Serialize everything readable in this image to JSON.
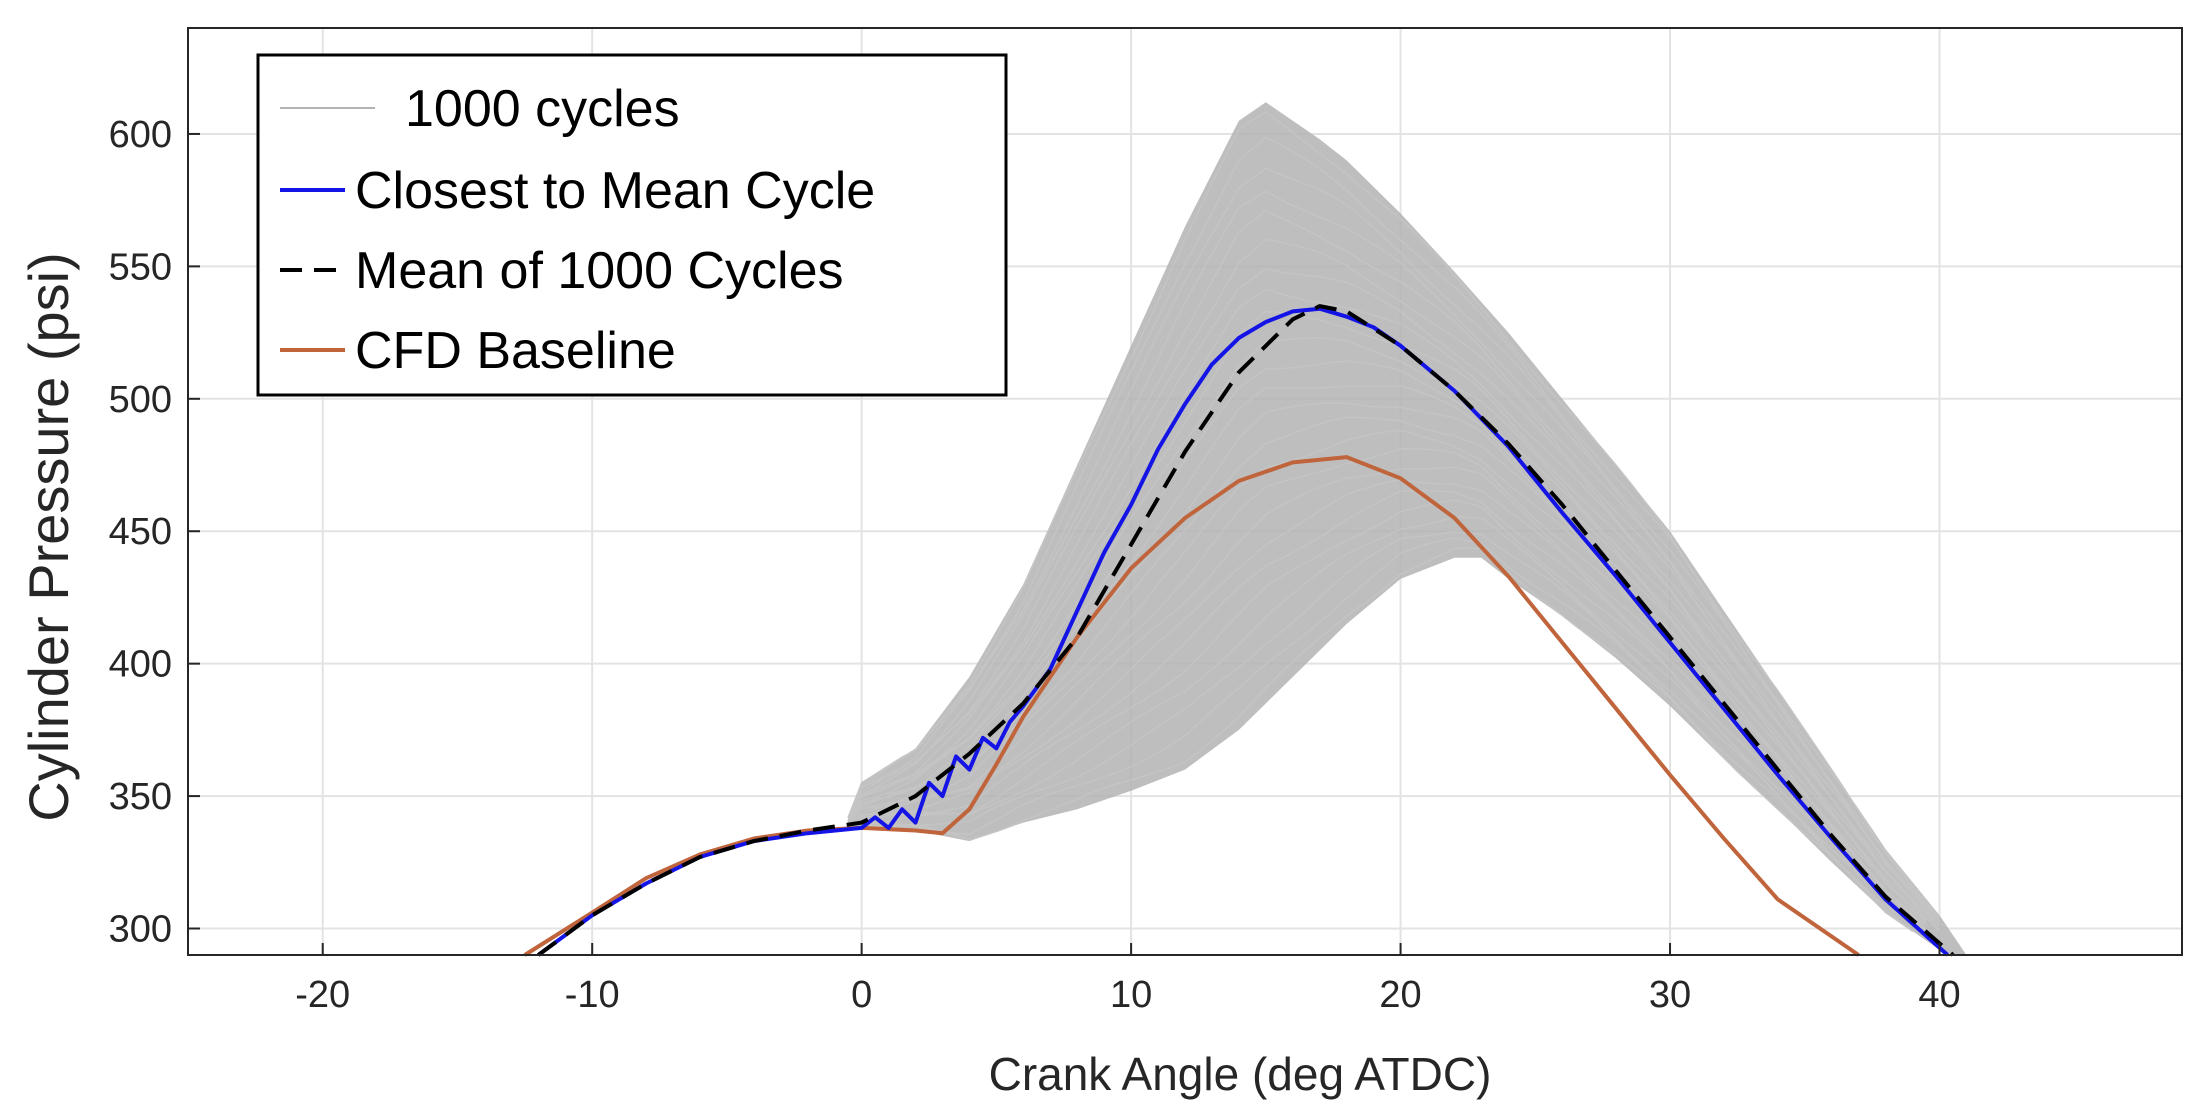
{
  "chart_data": {
    "type": "line",
    "title": "",
    "xlabel": "Crank Angle (deg ATDC)",
    "ylabel": "Cylinder Pressure (psi)",
    "xlim": [
      -25,
      49
    ],
    "ylim": [
      290,
      640
    ],
    "xticks": [
      -20,
      -10,
      0,
      10,
      20,
      30,
      40
    ],
    "yticks": [
      300,
      350,
      400,
      450,
      500,
      550,
      600
    ],
    "grid": true,
    "legend_position": "top-left",
    "colors": {
      "cycles": "#b3b3b3",
      "closest": "#1414e6",
      "mean": "#000000",
      "cfd": "#c0643c",
      "grid": "#e3e3e3",
      "axis": "#262626"
    },
    "legend": [
      {
        "key": "cycles",
        "label": "1000 cycles",
        "style": "solid-thin"
      },
      {
        "key": "closest",
        "label": "Closest to Mean Cycle",
        "style": "solid"
      },
      {
        "key": "mean",
        "label": "Mean of 1000 Cycles",
        "style": "dashed"
      },
      {
        "key": "cfd",
        "label": "CFD Baseline",
        "style": "solid"
      }
    ],
    "series": [
      {
        "name": "Mean of 1000 Cycles",
        "key": "mean",
        "x": [
          -12,
          -10,
          -8,
          -6,
          -4,
          -2,
          0,
          2,
          4,
          6,
          8,
          10,
          12,
          14,
          16,
          17,
          18,
          20,
          22,
          24,
          26,
          28,
          30,
          32,
          34,
          36,
          38,
          40.5
        ],
        "y": [
          290,
          305,
          317,
          327,
          333,
          337,
          340,
          350,
          366,
          385,
          410,
          445,
          480,
          510,
          530,
          535,
          533,
          520,
          503,
          483,
          460,
          435,
          410,
          385,
          360,
          335,
          312,
          290
        ]
      },
      {
        "name": "Closest to Mean Cycle",
        "key": "closest",
        "x": [
          -12,
          -10,
          -8,
          -6,
          -4,
          -2,
          0,
          0.5,
          1,
          1.5,
          2,
          2.5,
          3,
          3.5,
          4,
          4.5,
          5,
          5.5,
          6,
          7,
          8,
          9,
          10,
          11,
          12,
          13,
          14,
          15,
          16,
          17,
          18,
          19,
          20,
          22,
          24,
          26,
          28,
          30,
          32,
          34,
          36,
          38,
          40.3
        ],
        "y": [
          290,
          305,
          317,
          327,
          333,
          336,
          338,
          342,
          338,
          345,
          340,
          355,
          350,
          365,
          360,
          372,
          368,
          378,
          384,
          398,
          420,
          442,
          460,
          481,
          498,
          513,
          523,
          529,
          533,
          534,
          531,
          527,
          520,
          503,
          482,
          457,
          433,
          408,
          383,
          358,
          334,
          311,
          290
        ]
      },
      {
        "name": "CFD Baseline",
        "key": "cfd",
        "x": [
          -12.5,
          -10,
          -8,
          -6,
          -4,
          -2,
          0,
          2,
          3,
          4,
          5,
          6,
          8,
          10,
          12,
          14,
          16,
          18,
          20,
          22,
          24,
          26,
          28,
          30,
          32,
          34,
          37
        ],
        "y": [
          290,
          306,
          319,
          328,
          334,
          337,
          338,
          337,
          336,
          345,
          362,
          380,
          410,
          436,
          455,
          469,
          476,
          478,
          470,
          455,
          433,
          408,
          383,
          358,
          334,
          311,
          290
        ]
      }
    ],
    "ensemble": {
      "name": "1000 cycles",
      "key": "cycles",
      "count": 1000,
      "upper_envelope": {
        "x": [
          -0.5,
          0,
          2,
          4,
          6,
          8,
          10,
          12,
          13,
          14,
          15,
          16,
          17,
          18,
          20,
          22,
          24,
          26,
          28,
          30,
          32,
          34,
          36,
          38,
          40,
          41
        ],
        "y": [
          342,
          355,
          368,
          395,
          430,
          475,
          520,
          565,
          585,
          605,
          612,
          605,
          598,
          590,
          570,
          548,
          525,
          500,
          475,
          450,
          420,
          390,
          360,
          330,
          305,
          290
        ]
      },
      "lower_envelope": {
        "x": [
          -0.5,
          0,
          2,
          4,
          6,
          8,
          10,
          12,
          14,
          16,
          18,
          20,
          22,
          23,
          24,
          26,
          28,
          30,
          32,
          34,
          36,
          38,
          40,
          40.5
        ],
        "y": [
          337,
          338,
          337,
          333,
          340,
          345,
          352,
          360,
          375,
          395,
          415,
          432,
          440,
          440,
          432,
          418,
          402,
          384,
          364,
          345,
          325,
          306,
          292,
          290
        ]
      }
    }
  }
}
